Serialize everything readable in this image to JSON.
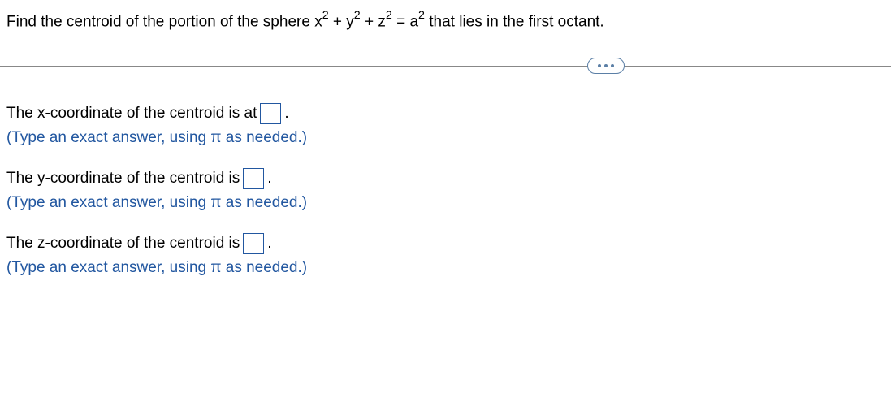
{
  "question": {
    "prefix": "Find the centroid of the portion of the sphere ",
    "eq_x": "x",
    "eq_plus1": " + ",
    "eq_y": "y",
    "eq_plus2": " + ",
    "eq_z": "z",
    "eq_equals": " = ",
    "eq_a": "a",
    "exp": "2",
    "suffix": " that lies in the first octant."
  },
  "answers": {
    "x": {
      "label_pre": "The x-coordinate of the centroid is at ",
      "label_post": ".",
      "hint": "(Type an exact answer, using π as needed.)"
    },
    "y": {
      "label_pre": "The y-coordinate of the centroid is ",
      "label_post": ".",
      "hint": "(Type an exact answer, using π as needed.)"
    },
    "z": {
      "label_pre": "The z-coordinate of the centroid is ",
      "label_post": ".",
      "hint": "(Type an exact answer, using π as needed.)"
    }
  }
}
